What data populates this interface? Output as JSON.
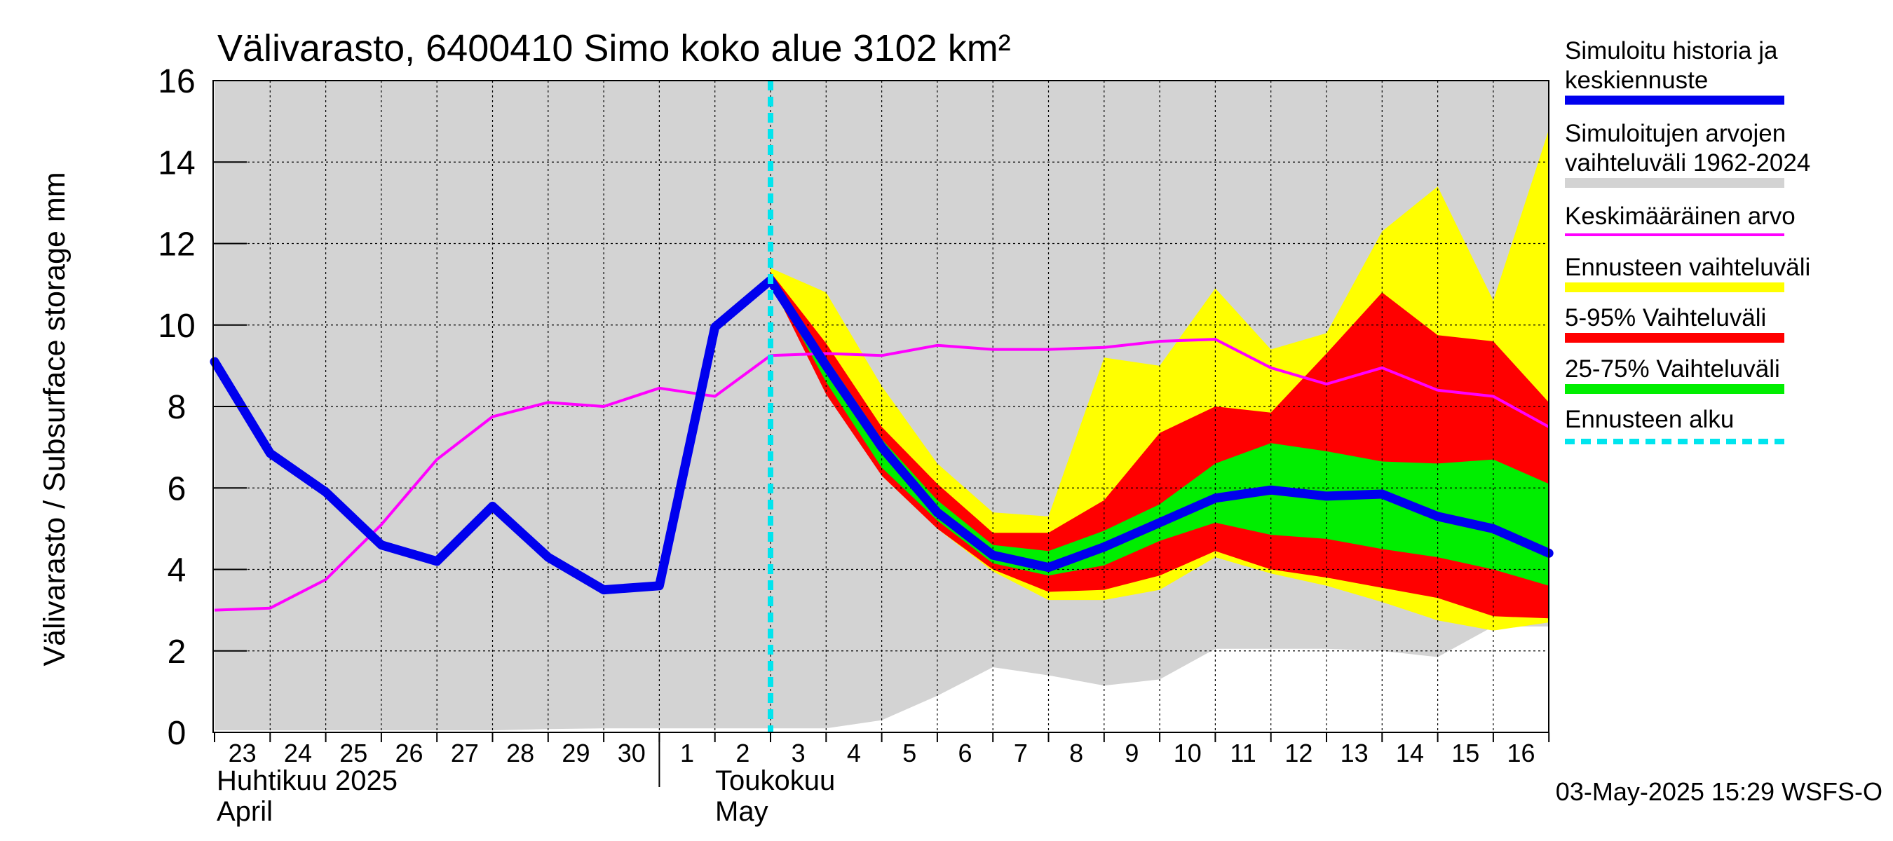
{
  "chart_data": {
    "type": "area",
    "title": "Välivarasto, 6400410 Simo koko alue 3102 km²",
    "ylabel": "Välivarasto / Subsurface storage  mm",
    "ylim": [
      0,
      16
    ],
    "yticks": [
      "0",
      "2",
      "4",
      "6",
      "8",
      "10",
      "12",
      "14",
      "16"
    ],
    "x_tick_labels": [
      "23",
      "24",
      "25",
      "26",
      "27",
      "28",
      "29",
      "30",
      "1",
      "2",
      "3",
      "4",
      "5",
      "6",
      "7",
      "8",
      "9",
      "10",
      "11",
      "12",
      "13",
      "14",
      "15",
      "16"
    ],
    "month_labels": [
      {
        "fi": "Huhtikuu  2025",
        "en": "April"
      },
      {
        "fi": "Toukokuu",
        "en": "May"
      }
    ],
    "footer": "03-May-2025 15:29 WSFS-O",
    "forecast_start_day_index": 10,
    "grid": true,
    "legend_position": "right",
    "legend": [
      {
        "label": "Simuloitu historia ja keskiennuste",
        "color": "#0000ee",
        "style": "thick-line"
      },
      {
        "label": "Simuloitujen arvojen vaihteluväli 1962-2024",
        "color": "#d3d3d3",
        "style": "band"
      },
      {
        "label": "Keskimääräinen arvo",
        "color": "#ff00ff",
        "style": "line"
      },
      {
        "label": "Ennusteen vaihteluväli",
        "color": "#ffff00",
        "style": "band"
      },
      {
        "label": "5-95% Vaihteluväli",
        "color": "#ff0000",
        "style": "band"
      },
      {
        "label": "25-75% Vaihteluväli",
        "color": "#00ee00",
        "style": "band"
      },
      {
        "label": "Ennusteen alku",
        "color": "#00e5ee",
        "style": "dashed-line"
      }
    ],
    "series": {
      "history_band": {
        "x": [
          0,
          1,
          2,
          3,
          4,
          5,
          6,
          7,
          8,
          9,
          10,
          11,
          12,
          13,
          14,
          15,
          16,
          17,
          18,
          19,
          20,
          21,
          22,
          23,
          24
        ],
        "min": [
          0.05,
          0.05,
          0.05,
          0.05,
          0.05,
          0.05,
          0.08,
          0.1,
          0.1,
          0.1,
          0.1,
          0.1,
          0.3,
          0.9,
          1.6,
          1.4,
          1.15,
          1.3,
          2.05,
          2.05,
          2.05,
          2.0,
          1.85,
          2.6,
          2.6
        ],
        "max": [
          16,
          16,
          16,
          16,
          16,
          16,
          16,
          16,
          16,
          16,
          16,
          16,
          16,
          16,
          16,
          16,
          16,
          16,
          16,
          16,
          16,
          16,
          16,
          16,
          16
        ]
      },
      "mean": {
        "x": [
          0,
          1,
          2,
          3,
          4,
          5,
          6,
          7,
          8,
          9,
          10,
          11,
          12,
          13,
          14,
          15,
          16,
          17,
          18,
          19,
          20,
          21,
          22,
          23,
          24
        ],
        "y": [
          3.0,
          3.05,
          3.75,
          5.1,
          6.7,
          7.75,
          8.1,
          8.0,
          8.45,
          8.25,
          9.25,
          9.3,
          9.25,
          9.5,
          9.4,
          9.4,
          9.45,
          9.6,
          9.65,
          8.95,
          8.55,
          8.95,
          8.4,
          8.25,
          7.5
        ]
      },
      "simulated": {
        "x": [
          0,
          1,
          2,
          3,
          4,
          5,
          6,
          7,
          8,
          9,
          10,
          11,
          12,
          13,
          14,
          15,
          16,
          17,
          18,
          19,
          20,
          21,
          22,
          23,
          24
        ],
        "y": [
          9.1,
          6.85,
          5.9,
          4.6,
          4.2,
          5.55,
          4.3,
          3.5,
          3.6,
          9.95,
          11.1,
          9.0,
          7.0,
          5.4,
          4.35,
          4.05,
          4.55,
          5.15,
          5.75,
          5.95,
          5.8,
          5.85,
          5.3,
          5.0,
          4.4
        ]
      },
      "forecast_band": {
        "x": [
          10,
          11,
          12,
          13,
          14,
          15,
          16,
          17,
          18,
          19,
          20,
          21,
          22,
          23,
          24
        ],
        "min": [
          11.0,
          8.4,
          6.3,
          5.0,
          3.95,
          3.25,
          3.25,
          3.5,
          4.3,
          3.9,
          3.6,
          3.2,
          2.75,
          2.5,
          2.7
        ],
        "max": [
          11.4,
          10.8,
          8.5,
          6.6,
          5.4,
          5.3,
          9.2,
          9.0,
          10.9,
          9.4,
          9.8,
          12.3,
          13.4,
          10.6,
          14.8
        ]
      },
      "p5_95": {
        "x": [
          10,
          11,
          12,
          13,
          14,
          15,
          16,
          17,
          18,
          19,
          20,
          21,
          22,
          23,
          24
        ],
        "min": [
          11.05,
          8.3,
          6.3,
          5.0,
          4.0,
          3.45,
          3.5,
          3.85,
          4.45,
          4.0,
          3.8,
          3.55,
          3.3,
          2.85,
          2.8
        ],
        "max": [
          11.3,
          9.55,
          7.5,
          6.1,
          4.9,
          4.9,
          5.7,
          7.35,
          8.0,
          7.85,
          9.3,
          10.8,
          9.75,
          9.6,
          8.1
        ]
      },
      "p25_75": {
        "x": [
          10,
          11,
          12,
          13,
          14,
          15,
          16,
          17,
          18,
          19,
          20,
          21,
          22,
          23,
          24
        ],
        "min": [
          11.1,
          8.6,
          6.5,
          5.2,
          4.15,
          3.85,
          4.1,
          4.7,
          5.15,
          4.85,
          4.75,
          4.5,
          4.3,
          4.0,
          3.6
        ],
        "max": [
          11.2,
          9.2,
          7.2,
          5.7,
          4.6,
          4.45,
          4.95,
          5.6,
          6.6,
          7.1,
          6.9,
          6.65,
          6.6,
          6.7,
          6.1
        ]
      }
    }
  }
}
